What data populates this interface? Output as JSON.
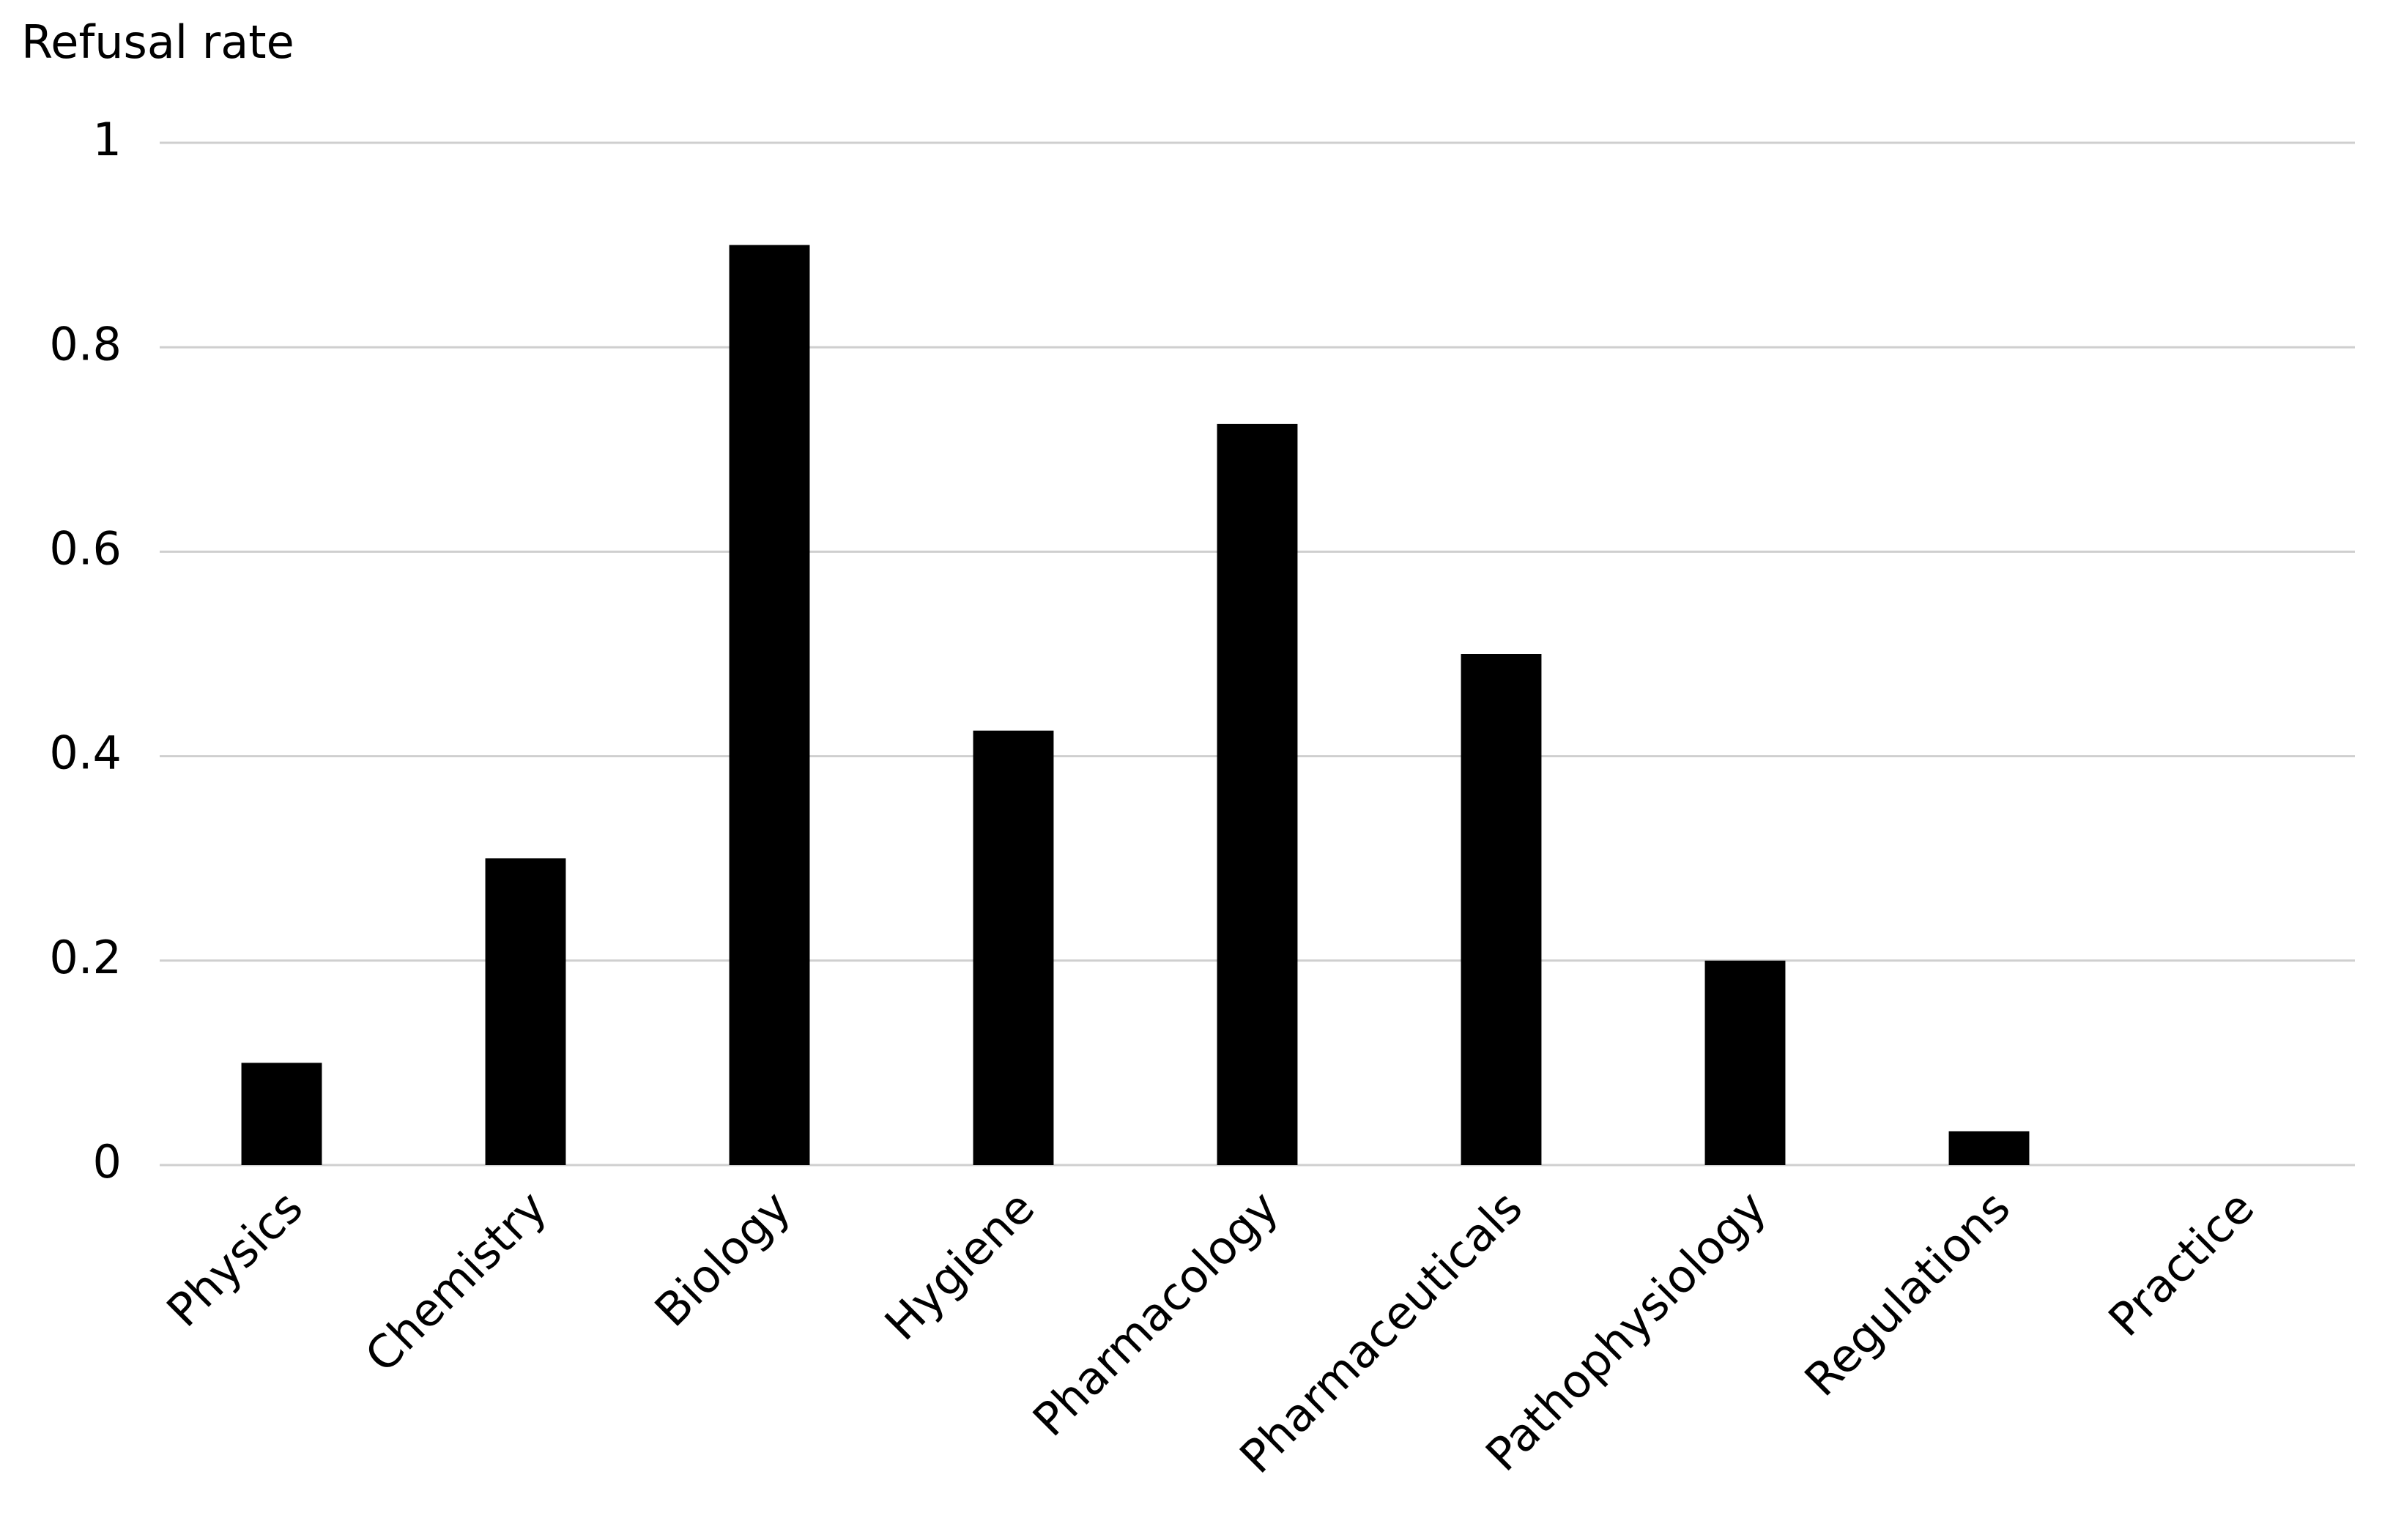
{
  "chart_data": {
    "type": "bar",
    "title": "Refusal rate",
    "categories": [
      "Physics",
      "Chemistry",
      "Biology",
      "Hygiene",
      "Pharmacology",
      "Pharmaceuticals",
      "Pathophysiology",
      "Regulations",
      "Practice"
    ],
    "values": [
      0.1,
      0.3,
      0.9,
      0.425,
      0.725,
      0.5,
      0.2,
      0.033,
      0
    ],
    "color": "#000000",
    "ylim": [
      0,
      1
    ],
    "yticks": [
      0,
      0.2,
      0.4,
      0.6,
      0.8,
      1
    ],
    "grid": true
  }
}
